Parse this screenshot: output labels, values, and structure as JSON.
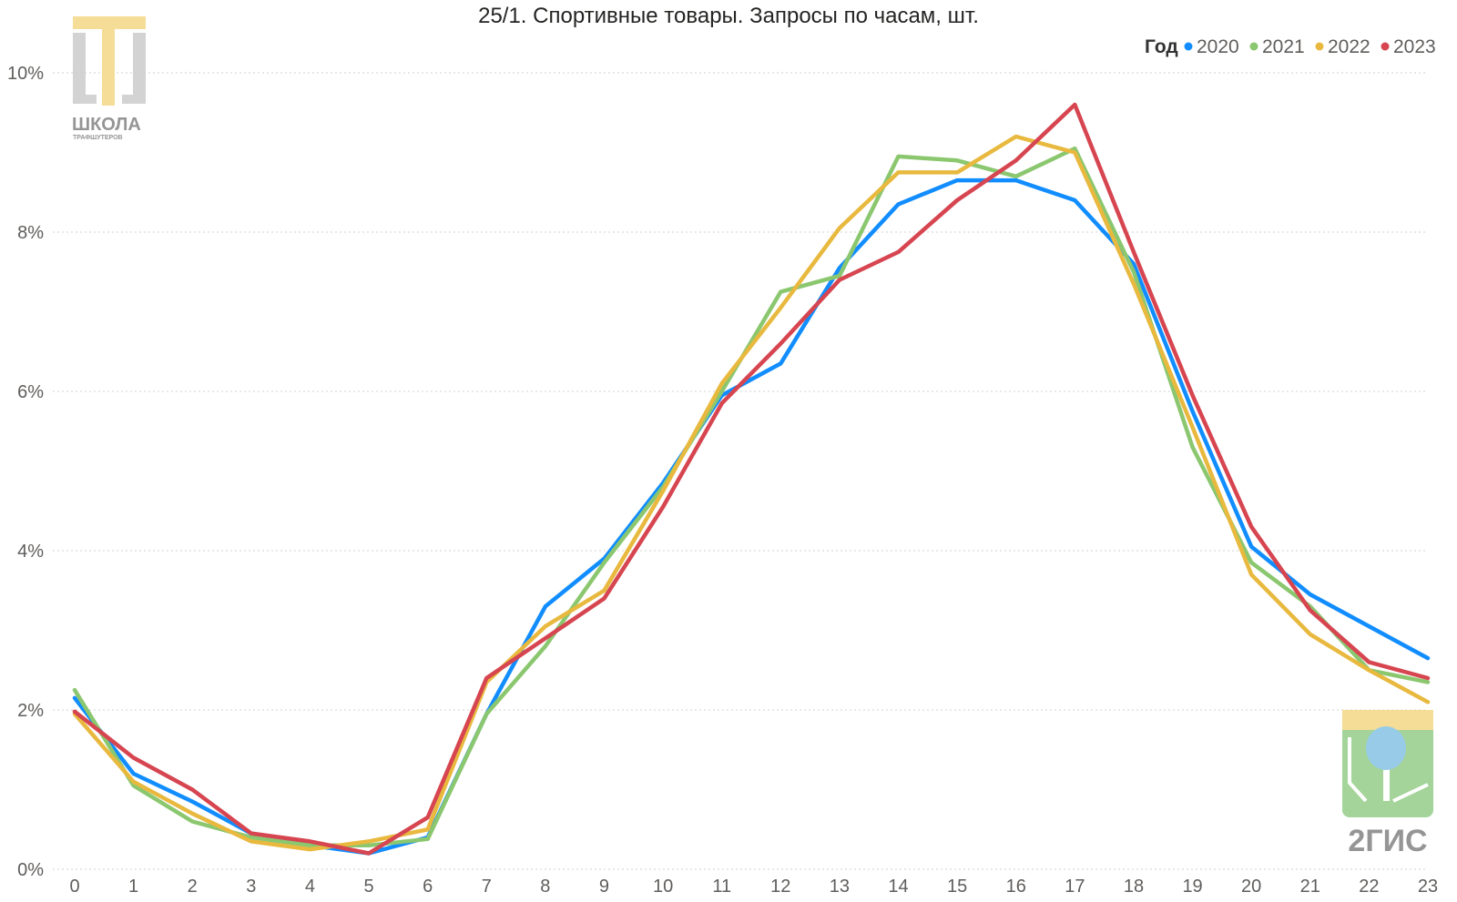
{
  "chart_data": {
    "type": "line",
    "title": "25/1. Спортивные товары. Запросы по часам, шт.",
    "xlabel": "",
    "ylabel": "",
    "x": [
      0,
      1,
      2,
      3,
      4,
      5,
      6,
      7,
      8,
      9,
      10,
      11,
      12,
      13,
      14,
      15,
      16,
      17,
      18,
      19,
      20,
      21,
      22,
      23
    ],
    "x_tick_labels": [
      "0",
      "1",
      "2",
      "3",
      "4",
      "5",
      "6",
      "7",
      "8",
      "9",
      "10",
      "11",
      "12",
      "13",
      "14",
      "15",
      "16",
      "17",
      "18",
      "19",
      "20",
      "21",
      "22",
      "23"
    ],
    "ylim": [
      0,
      10
    ],
    "y_ticks": [
      0,
      2,
      4,
      6,
      8,
      10
    ],
    "y_tick_labels": [
      "0%",
      "2%",
      "4%",
      "6%",
      "8%",
      "10%"
    ],
    "grid": true,
    "legend": {
      "title": "Год",
      "placement": "top-right"
    },
    "series": [
      {
        "name": "2020",
        "color": "#118DFF",
        "values": [
          2.15,
          1.2,
          0.85,
          0.45,
          0.3,
          0.2,
          0.4,
          1.95,
          3.3,
          3.9,
          4.85,
          5.95,
          6.35,
          7.55,
          8.35,
          8.65,
          8.65,
          8.4,
          7.6,
          5.75,
          4.05,
          3.45,
          3.05,
          2.65
        ]
      },
      {
        "name": "2021",
        "color": "#8BC76F",
        "values": [
          2.25,
          1.05,
          0.6,
          0.4,
          0.3,
          0.3,
          0.38,
          1.95,
          2.8,
          3.85,
          4.8,
          6.0,
          7.25,
          7.45,
          8.95,
          8.9,
          8.7,
          9.05,
          7.5,
          5.3,
          3.85,
          3.3,
          2.5,
          2.35
        ]
      },
      {
        "name": "2022",
        "color": "#E8B93E",
        "values": [
          1.95,
          1.1,
          0.7,
          0.35,
          0.25,
          0.35,
          0.5,
          2.35,
          3.05,
          3.5,
          4.75,
          6.1,
          7.05,
          8.05,
          8.75,
          8.75,
          9.2,
          9.0,
          7.35,
          5.55,
          3.7,
          2.95,
          2.5,
          2.1
        ]
      },
      {
        "name": "2023",
        "color": "#D64550",
        "values": [
          1.98,
          1.4,
          1.0,
          0.45,
          0.35,
          0.2,
          0.65,
          2.4,
          2.9,
          3.4,
          4.55,
          5.85,
          6.6,
          7.4,
          7.75,
          8.4,
          8.9,
          9.6,
          7.75,
          5.95,
          4.3,
          3.25,
          2.6,
          2.4
        ]
      }
    ]
  },
  "watermarks": {
    "school_logo": {
      "text_main": "ШКОЛА",
      "text_sub": "ТРАФШУТЕРОВ",
      "colors": {
        "yellow": "#F5DA8C",
        "gray": "#CFCFCF",
        "text": "#8A8A8A"
      }
    },
    "gis_logo": {
      "text": "2ГИС",
      "colors": {
        "yellow": "#F5DA8C",
        "green": "#9BD08F",
        "blue": "#8CC6E6",
        "text": "#8A8A8A"
      }
    }
  }
}
